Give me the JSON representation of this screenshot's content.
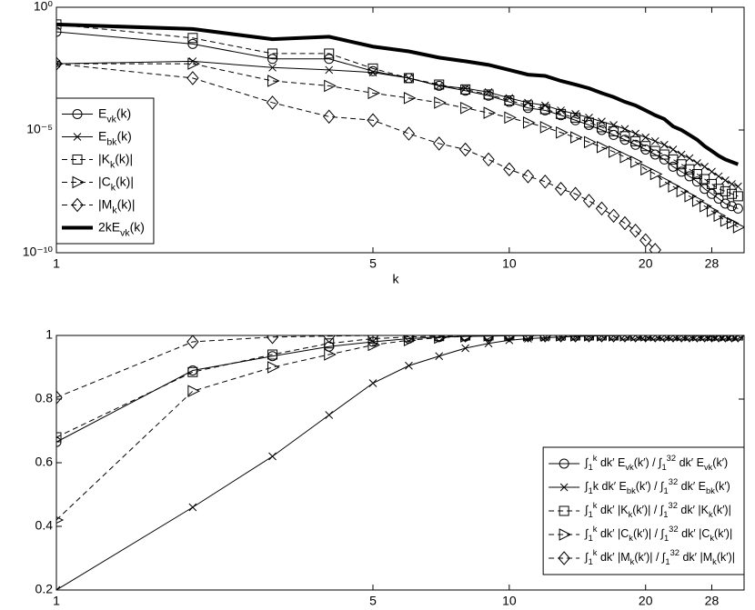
{
  "chart_data": [
    {
      "type": "line",
      "xlabel": "k",
      "xscale": "log",
      "yscale": "log",
      "x": [
        1,
        2,
        3,
        4,
        5,
        6,
        7,
        8,
        9,
        10,
        11,
        12,
        13,
        14,
        15,
        16,
        17,
        18,
        19,
        20,
        21,
        22,
        23,
        24,
        25,
        26,
        27,
        28,
        29,
        30,
        31,
        32
      ],
      "xlim": [
        1,
        33
      ],
      "xticks": [
        1,
        5,
        10,
        20,
        28
      ],
      "ylim": [
        1e-10,
        1
      ],
      "yticks": [
        {
          "value": 1,
          "label": "10⁰"
        },
        {
          "value": 1e-05,
          "label": "10⁻⁵"
        },
        {
          "value": 1e-10,
          "label": "10⁻¹⁰"
        }
      ],
      "legend": "lower left",
      "series": [
        {
          "name": "E_{vk}(k)",
          "color": "#000000",
          "marker": "circle",
          "linestyle": "solid",
          "linewidth": 1,
          "values": [
            0.1,
            0.032,
            0.0079,
            0.0079,
            0.0025,
            0.0013,
            0.00063,
            0.0004,
            0.00025,
            0.00014,
            7.9e-05,
            6.3e-05,
            4e-05,
            2.5e-05,
            1.6e-05,
            1e-05,
            6.3e-06,
            4e-06,
            2.5e-06,
            1.6e-06,
            1e-06,
            6.3e-07,
            3.2e-07,
            2e-07,
            1.3e-07,
            7.9e-08,
            4e-08,
            2.5e-08,
            1.6e-08,
            1e-08,
            7.9e-09,
            6.3e-09
          ]
        },
        {
          "name": "E_{bk}(k)",
          "color": "#000000",
          "marker": "x",
          "linestyle": "solid",
          "linewidth": 1,
          "values": [
            0.005,
            0.0063,
            0.0035,
            0.0028,
            0.0022,
            0.0013,
            0.00063,
            0.0005,
            0.00035,
            0.0002,
            0.00013,
            0.0001,
            6.3e-05,
            4.5e-05,
            3.2e-05,
            2.2e-05,
            1.6e-05,
            1.1e-05,
            7.1e-06,
            5e-06,
            3.5e-06,
            2.5e-06,
            1.6e-06,
            1e-06,
            7.1e-07,
            4.5e-07,
            3.2e-07,
            2e-07,
            1.3e-07,
            8.9e-08,
            6.3e-08,
            5e-08
          ]
        },
        {
          "name": "|K_{k}(k)|",
          "color": "#000000",
          "marker": "square",
          "linestyle": "dashed",
          "linewidth": 1,
          "values": [
            0.2,
            0.056,
            0.013,
            0.013,
            0.0032,
            0.0013,
            0.00071,
            0.00045,
            0.00028,
            0.00016,
            0.0001,
            7.1e-05,
            4.5e-05,
            3.2e-05,
            2e-05,
            1.3e-05,
            8.9e-06,
            5.6e-06,
            3.5e-06,
            2.2e-06,
            1.4e-06,
            1e-06,
            6.3e-07,
            4e-07,
            2.5e-07,
            1.6e-07,
            1e-07,
            6.3e-08,
            4e-08,
            3.2e-08,
            2.5e-08,
            2e-08
          ]
        },
        {
          "name": "|C_{k}(k)|",
          "color": "#000000",
          "marker": "triangle",
          "linestyle": "dashed",
          "linewidth": 1,
          "values": [
            0.005,
            0.005,
            0.001,
            0.00063,
            0.00032,
            0.0002,
            0.00013,
            7.9e-05,
            5e-05,
            3.2e-05,
            2e-05,
            1.3e-05,
            7.9e-06,
            5e-06,
            3.2e-06,
            2e-06,
            1.3e-06,
            7.9e-07,
            5e-07,
            2.5e-07,
            1.6e-07,
            7.9e-08,
            5e-08,
            3.2e-08,
            2e-08,
            1.3e-08,
            7.9e-09,
            5e-09,
            3.2e-09,
            2e-09,
            1.6e-09,
            1.1e-09
          ]
        },
        {
          "name": "|M_{k}(k)|",
          "color": "#000000",
          "marker": "diamond",
          "linestyle": "dashed",
          "linewidth": 1,
          "values": [
            0.005,
            0.0013,
            0.00013,
            3.5e-05,
            2.5e-05,
            7.1e-06,
            2.8e-06,
            1.6e-06,
            6.3e-07,
            2.5e-07,
            1.3e-07,
            7.9e-08,
            4e-08,
            2.5e-08,
            1.3e-08,
            6.3e-09,
            3.2e-09,
            1.6e-09,
            7.9e-10,
            3.2e-10,
            1.3e-10,
            null,
            null,
            null,
            null,
            null,
            null,
            null,
            null,
            null,
            null,
            null
          ]
        },
        {
          "name": "2kE_{vk}(k)",
          "color": "#000000",
          "marker": "none",
          "linestyle": "solid",
          "linewidth": 4,
          "values": [
            0.2,
            0.13,
            0.05,
            0.063,
            0.025,
            0.016,
            0.0089,
            0.0063,
            0.0045,
            0.0028,
            0.0018,
            0.0016,
            0.001,
            0.00071,
            0.0005,
            0.00032,
            0.00022,
            0.00014,
            0.0001,
            6.3e-05,
            4e-05,
            2.8e-05,
            1.4e-05,
            1e-05,
            6.3e-06,
            4e-06,
            2.2e-06,
            1.4e-06,
            8.9e-07,
            6.3e-07,
            5e-07,
            4e-07
          ]
        }
      ]
    },
    {
      "type": "line",
      "xlabel": "k",
      "xscale": "log",
      "yscale": "linear",
      "x": [
        1,
        2,
        3,
        4,
        5,
        6,
        7,
        8,
        9,
        10,
        11,
        12,
        13,
        14,
        15,
        16,
        17,
        18,
        19,
        20,
        21,
        22,
        23,
        24,
        25,
        26,
        27,
        28,
        29,
        30,
        31,
        32
      ],
      "xlim": [
        1,
        33
      ],
      "xticks": [
        1,
        5,
        10,
        20,
        28
      ],
      "ylim": [
        0.2,
        1
      ],
      "yticks": [
        0.2,
        0.4,
        0.6,
        0.8,
        1
      ],
      "legend": "lower right",
      "series": [
        {
          "name": "∫_{1}^{k} dk′ E_{vk}(k′) / ∫_{1}^{32} dk′ E_{vk}(k′)",
          "color": "#000000",
          "marker": "circle",
          "linestyle": "solid",
          "linewidth": 1,
          "values": [
            0.665,
            0.89,
            0.935,
            0.965,
            0.98,
            0.99,
            0.995,
            0.997,
            0.998,
            0.999,
            0.999,
            1,
            1,
            1,
            1,
            1,
            1,
            1,
            1,
            1,
            1,
            1,
            1,
            1,
            1,
            1,
            1,
            1,
            1,
            1,
            1,
            1
          ]
        },
        {
          "name": "∫_{1}k dk′ E_{bk}(k′) / ∫_{1}^{32} dk′ E_{bk}(k′)",
          "color": "#000000",
          "marker": "x",
          "linestyle": "solid",
          "linewidth": 1,
          "values": [
            0.2,
            0.46,
            0.62,
            0.75,
            0.85,
            0.905,
            0.935,
            0.96,
            0.975,
            0.985,
            0.99,
            0.993,
            0.995,
            0.997,
            0.998,
            0.999,
            0.999,
            1,
            1,
            1,
            1,
            1,
            1,
            1,
            1,
            1,
            1,
            1,
            1,
            1,
            1,
            1
          ]
        },
        {
          "name": "∫_{1}^{k} dk′ |K_{k}(k′)| / ∫_{1}^{32} dk′ |K_{k}(k′)|",
          "color": "#000000",
          "marker": "square",
          "linestyle": "dashed",
          "linewidth": 1,
          "values": [
            0.68,
            0.885,
            0.94,
            0.975,
            0.99,
            0.995,
            0.998,
            1,
            1,
            1,
            1,
            1,
            1,
            1,
            1,
            1,
            1,
            1,
            1,
            1,
            1,
            1,
            1,
            1,
            1,
            1,
            1,
            1,
            1,
            1,
            1,
            1
          ]
        },
        {
          "name": "∫_{1}^{k} dk′ |C_{k}(k′)| / ∫_{1}^{32} dk′ |C_{k}(k′)|",
          "color": "#000000",
          "marker": "triangle",
          "linestyle": "dashed",
          "linewidth": 1,
          "values": [
            0.42,
            0.825,
            0.9,
            0.94,
            0.97,
            0.985,
            0.993,
            0.997,
            1,
            1,
            1,
            1,
            1,
            1,
            1,
            1,
            1,
            1,
            1,
            1,
            1,
            1,
            1,
            1,
            1,
            1,
            1,
            1,
            1,
            1,
            1,
            1
          ]
        },
        {
          "name": "∫_{1}^{k} dk′ |M_{k}(k′)| / ∫_{1}^{32} dk′ |M_{k}(k′)|",
          "color": "#000000",
          "marker": "diamond",
          "linestyle": "dashed",
          "linewidth": 1,
          "values": [
            0.805,
            0.98,
            0.995,
            0.998,
            1,
            1,
            1,
            1,
            1,
            1,
            1,
            1,
            1,
            1,
            1,
            1,
            1,
            1,
            1,
            1,
            1,
            1,
            1,
            1,
            1,
            1,
            1,
            1,
            1,
            1,
            1,
            1
          ]
        }
      ]
    }
  ]
}
